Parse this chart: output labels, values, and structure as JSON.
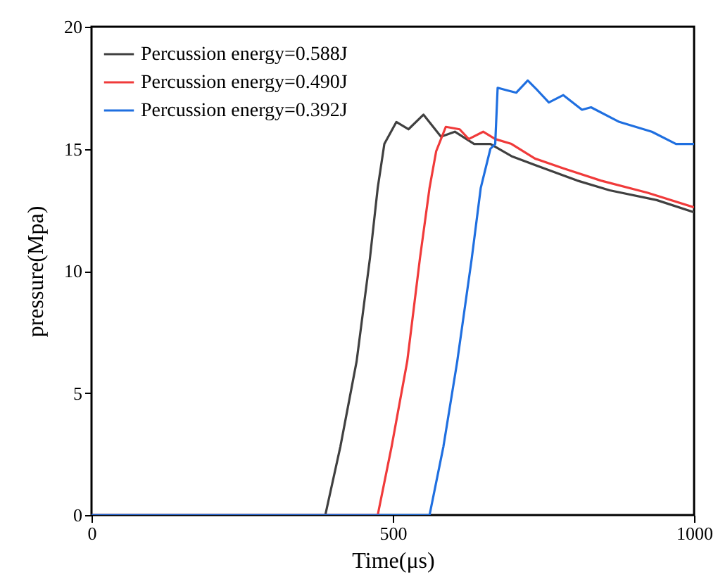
{
  "chart_data": {
    "type": "line",
    "xlabel": "Time(μs)",
    "ylabel": "pressure(Mpa)",
    "xlim": [
      0,
      1000
    ],
    "ylim": [
      0,
      20
    ],
    "xticks": [
      0,
      500,
      1000
    ],
    "yticks": [
      0,
      5,
      10,
      15,
      20
    ],
    "grid": false,
    "legend": "top left",
    "line_style": "solid",
    "marker": "none",
    "series": [
      {
        "name": "Percussion energy=0.588J",
        "color": "#404040",
        "x": [
          0,
          388,
          413,
          440,
          462,
          475,
          486,
          506,
          526,
          551,
          580,
          603,
          635,
          662,
          697,
          751,
          806,
          860,
          938,
          1000
        ],
        "values": [
          0,
          0,
          2.8,
          6.3,
          10.5,
          13.4,
          15.2,
          16.1,
          15.8,
          16.4,
          15.5,
          15.7,
          15.2,
          15.2,
          14.7,
          14.2,
          13.7,
          13.3,
          12.9,
          12.4
        ]
      },
      {
        "name": "Percussion energy=0.490J",
        "color": "#f03a3a",
        "x": [
          0,
          475,
          498,
          524,
          545,
          561,
          572,
          580,
          588,
          611,
          626,
          650,
          670,
          697,
          736,
          783,
          845,
          923,
          1000
        ],
        "values": [
          0,
          0,
          2.8,
          6.3,
          10.5,
          13.4,
          14.9,
          15.4,
          15.9,
          15.8,
          15.4,
          15.7,
          15.4,
          15.2,
          14.6,
          14.2,
          13.7,
          13.2,
          12.6
        ]
      },
      {
        "name": "Percussion energy=0.392J",
        "color": "#1f6fe0",
        "x": [
          0,
          561,
          584,
          607,
          631,
          646,
          662,
          670,
          674,
          689,
          705,
          724,
          740,
          759,
          783,
          814,
          829,
          876,
          930,
          970,
          1000
        ],
        "values": [
          0,
          0,
          2.8,
          6.3,
          10.5,
          13.4,
          15.0,
          15.2,
          17.5,
          17.4,
          17.3,
          17.8,
          17.4,
          16.9,
          17.2,
          16.6,
          16.7,
          16.1,
          15.7,
          15.2,
          15.2
        ]
      }
    ]
  }
}
